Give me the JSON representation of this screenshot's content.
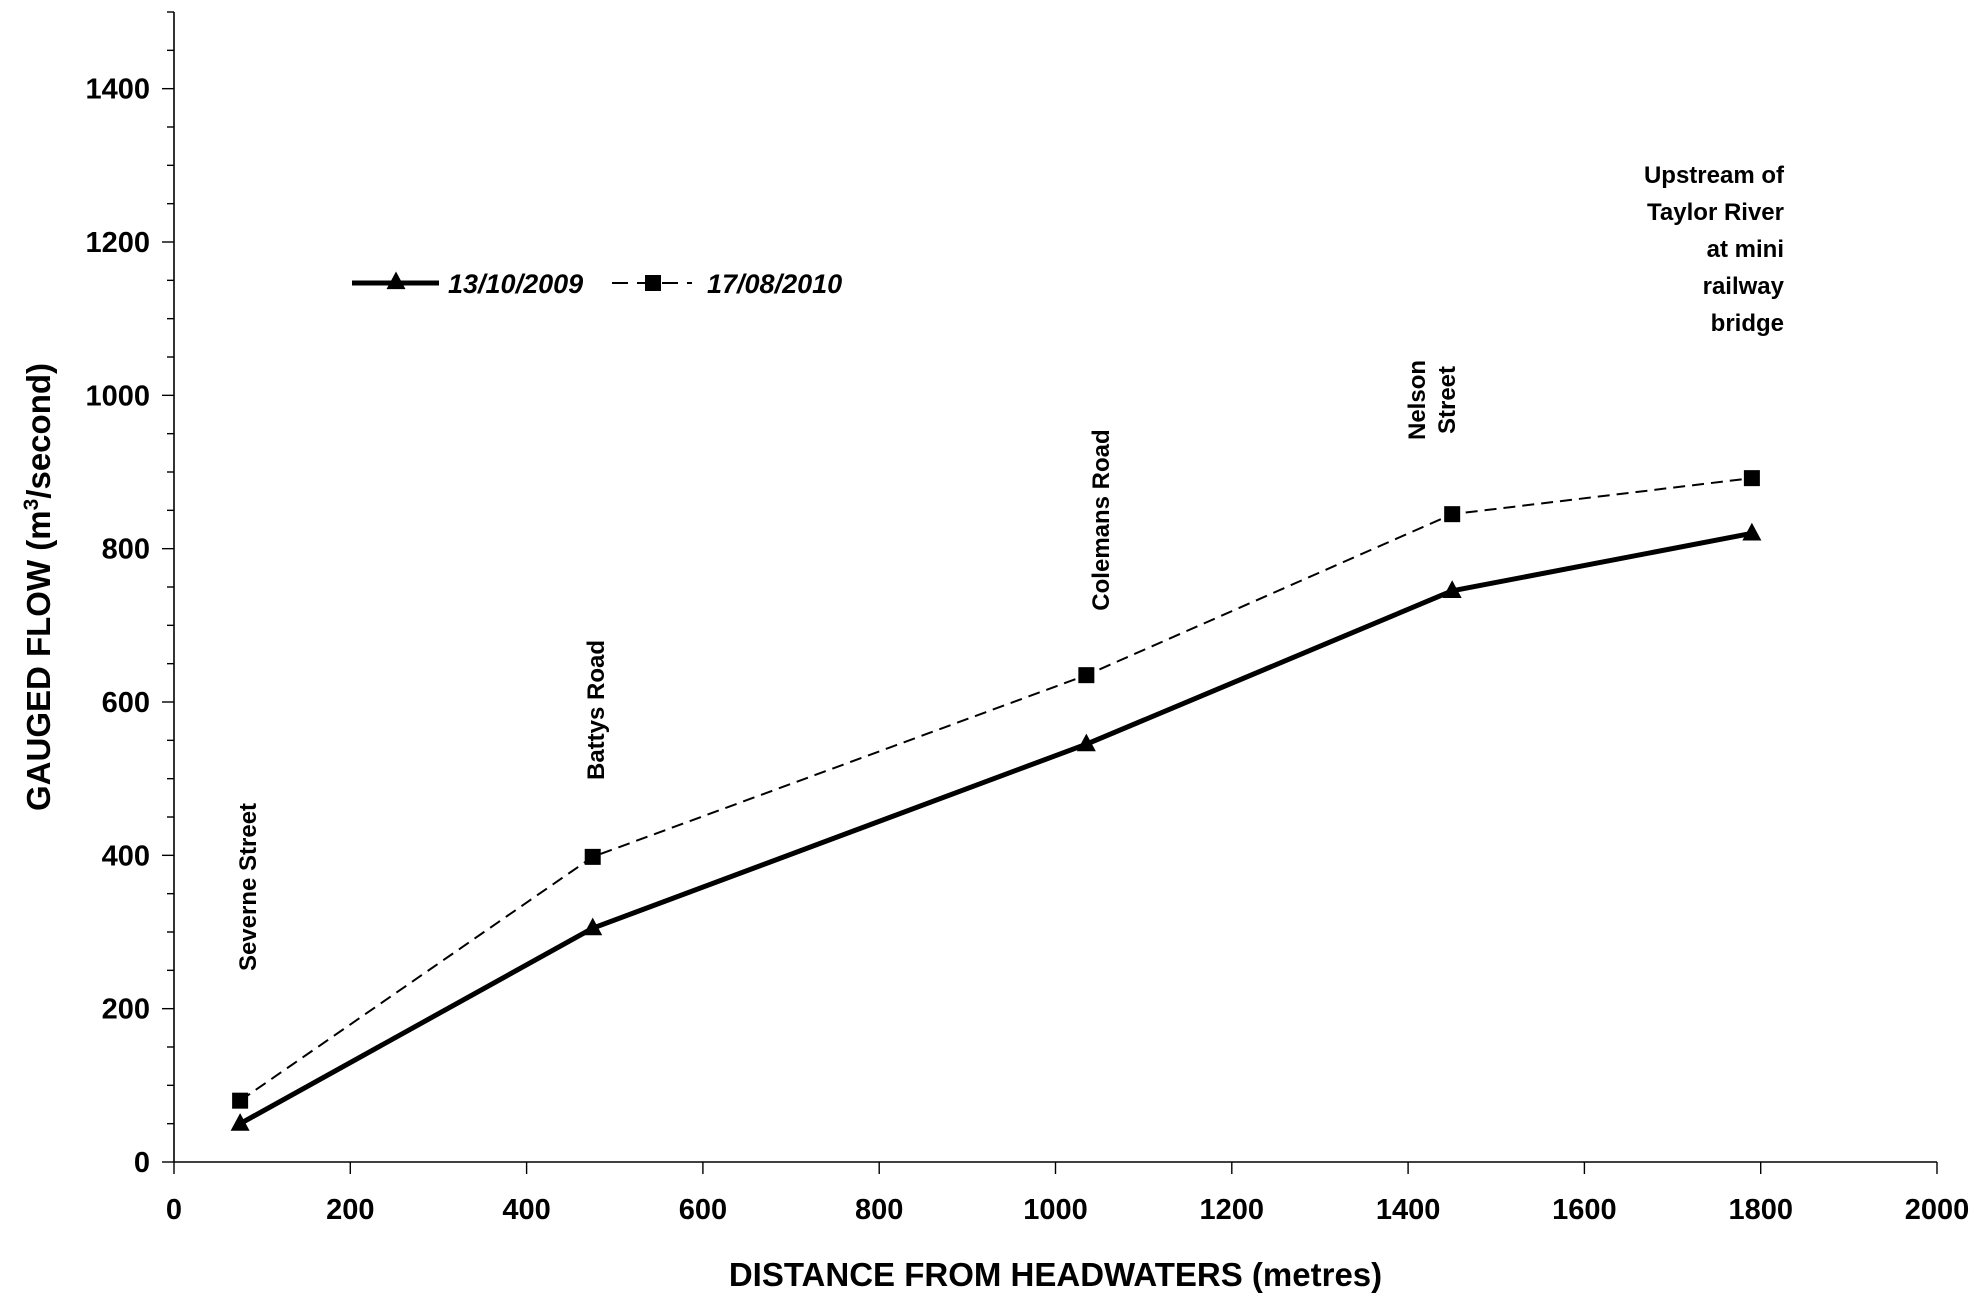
{
  "chart_data": {
    "type": "line",
    "xlabel": "DISTANCE FROM HEADWATERS (metres)",
    "ylabel": {
      "prefix": "GAUGED FLOW (m",
      "sup": "3",
      "suffix": "/second)"
    },
    "xlim": [
      0,
      2000
    ],
    "ylim": [
      0,
      1500
    ],
    "xticks": [
      0,
      200,
      400,
      600,
      800,
      1000,
      1200,
      1400,
      1600,
      1800,
      2000
    ],
    "yticks": [
      0,
      200,
      400,
      600,
      800,
      1000,
      1200,
      1400
    ],
    "grid": false,
    "legend_position": "upper-left",
    "series": [
      {
        "name": "13/10/2009",
        "marker": "triangle",
        "line": "solid",
        "color": "#000000",
        "x": [
          75,
          475,
          1035,
          1450,
          1790
        ],
        "y": [
          50,
          305,
          545,
          745,
          820
        ]
      },
      {
        "name": "17/08/2010",
        "marker": "square",
        "line": "dashed",
        "color": "#000000",
        "x": [
          75,
          475,
          1035,
          1450,
          1790
        ],
        "y": [
          80,
          398,
          635,
          845,
          892
        ]
      }
    ],
    "annotations": [
      {
        "text": [
          "Severne Street"
        ],
        "x": 75,
        "rotated": true
      },
      {
        "text": [
          "Battys Road"
        ],
        "x": 475,
        "rotated": true
      },
      {
        "text": [
          "Colemans Road"
        ],
        "x": 1035,
        "rotated": true
      },
      {
        "text": [
          "Nelson",
          "Street"
        ],
        "x": 1450,
        "rotated": true
      },
      {
        "text": [
          "Upstream of",
          "Taylor River",
          "at mini",
          "railway",
          "bridge"
        ],
        "x": 1790,
        "rotated": false
      }
    ]
  }
}
